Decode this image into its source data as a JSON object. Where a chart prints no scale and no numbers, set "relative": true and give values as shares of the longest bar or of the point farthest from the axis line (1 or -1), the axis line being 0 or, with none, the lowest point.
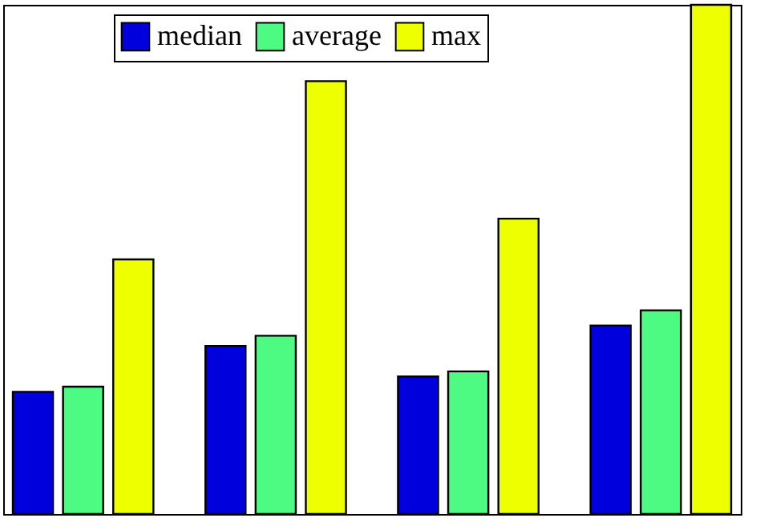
{
  "chart_data": {
    "type": "bar",
    "relative": true,
    "categories": [
      null,
      null,
      null,
      null
    ],
    "series": [
      {
        "name": "median",
        "color": "#0000dd",
        "values": [
          0.24,
          0.33,
          0.27,
          0.37
        ]
      },
      {
        "name": "average",
        "color": "#4dfb83",
        "values": [
          0.25,
          0.35,
          0.28,
          0.4
        ]
      },
      {
        "name": "max",
        "color": "#eeff00",
        "values": [
          0.5,
          0.85,
          0.58,
          1.0
        ]
      }
    ],
    "legend": "top"
  }
}
